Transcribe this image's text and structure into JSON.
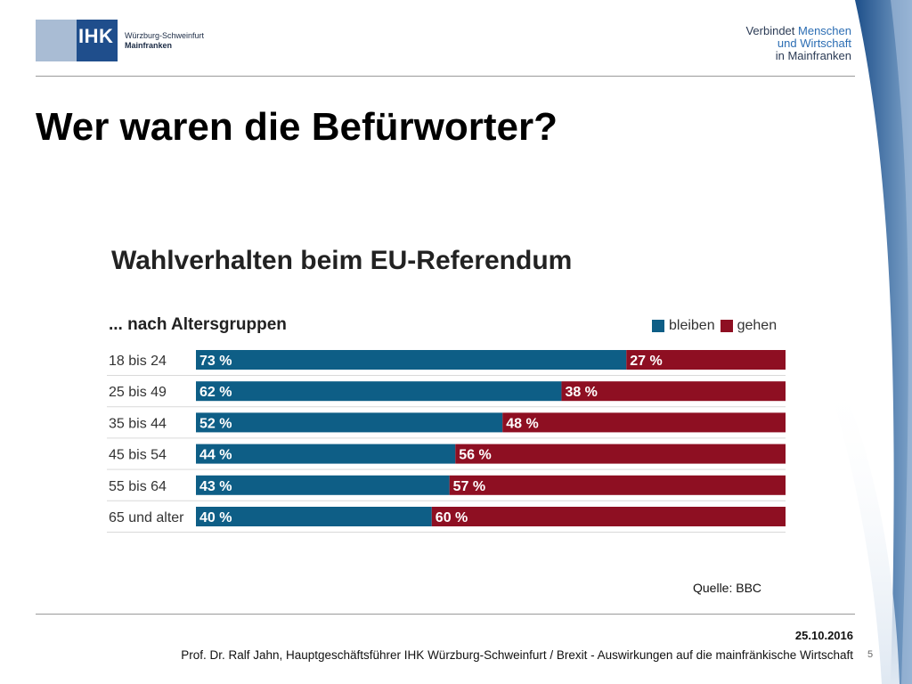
{
  "header": {
    "logo_mark": "IHK",
    "logo_line1": "Würzburg-Schweinfurt",
    "logo_line2": "Mainfranken",
    "claim_line1_a": "Verbindet",
    "claim_line1_b": "Menschen",
    "claim_line2": "und Wirtschaft",
    "claim_line3": "in Mainfranken"
  },
  "slide": {
    "title": "Wer waren die Befürworter?",
    "source": "Quelle: BBC",
    "date": "25.10.2016",
    "footer": "Prof. Dr. Ralf Jahn, Hauptgeschäftsführer IHK Würzburg-Schweinfurt / Brexit - Auswirkungen auf die mainfränkische Wirtschaft",
    "page_number": "5"
  },
  "colors": {
    "bleiben": "#0e5e86",
    "gehen": "#8e0f22",
    "brand_blue": "#1f4e8c"
  },
  "chart_data": {
    "type": "bar",
    "orientation": "horizontal",
    "stacked": true,
    "title": "Wahlverhalten beim EU-Referendum",
    "subtitle": "... nach Altersgruppen",
    "categories": [
      "18 bis 24",
      "25 bis 49",
      "35 bis 44",
      "45 bis 54",
      "55 bis 64",
      "65 und alter"
    ],
    "series": [
      {
        "name": "bleiben",
        "values": [
          73,
          62,
          52,
          44,
          43,
          40
        ],
        "labels": [
          "73 %",
          "62 %",
          "52 %",
          "44 %",
          "43 %",
          "40 %"
        ]
      },
      {
        "name": "gehen",
        "values": [
          27,
          38,
          48,
          56,
          57,
          60
        ],
        "labels": [
          "27 %",
          "38 %",
          "48 %",
          "56 %",
          "57 %",
          "60 %"
        ]
      }
    ],
    "xlim": [
      0,
      100
    ],
    "legend_position": "top-right",
    "grid": false
  }
}
